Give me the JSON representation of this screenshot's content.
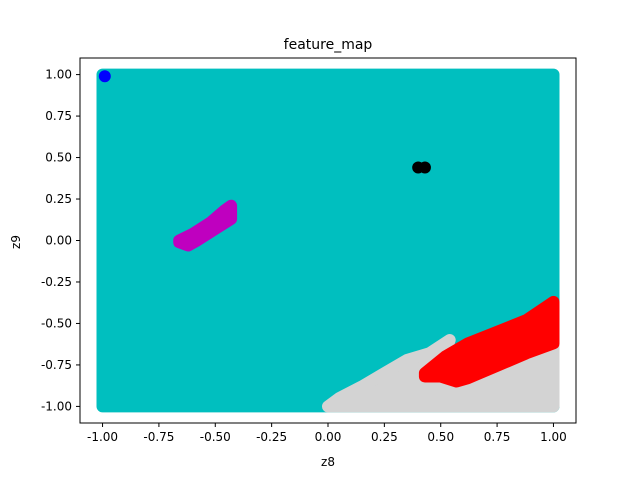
{
  "chart_data": {
    "type": "scatter",
    "title": "feature_map",
    "xlabel": "z8",
    "ylabel": "z9",
    "xlim": [
      -1.1,
      1.1
    ],
    "ylim": [
      -1.1,
      1.1
    ],
    "xticks": [
      "-1.00",
      "-0.75",
      "-0.50",
      "-0.25",
      "0.00",
      "0.25",
      "0.50",
      "0.75",
      "1.00"
    ],
    "xtick_values": [
      -1.0,
      -0.75,
      -0.5,
      -0.25,
      0.0,
      0.25,
      0.5,
      0.75,
      1.0
    ],
    "yticks": [
      "-1.00",
      "-0.75",
      "-0.50",
      "-0.25",
      "0.00",
      "0.25",
      "0.50",
      "0.75",
      "1.00"
    ],
    "ytick_values": [
      -1.0,
      -0.75,
      -0.5,
      -0.25,
      0.0,
      0.25,
      0.5,
      0.75,
      1.0
    ],
    "grid": false,
    "regions": [
      {
        "color": "#00bfbf",
        "shape": "polygon",
        "points": [
          [
            -1.0,
            1.0
          ],
          [
            1.0,
            1.0
          ],
          [
            1.0,
            -1.0
          ],
          [
            -1.0,
            -1.0
          ]
        ]
      },
      {
        "color": "#d3d3d3",
        "shape": "polygon",
        "points": [
          [
            0.0,
            -1.0
          ],
          [
            1.0,
            -1.0
          ],
          [
            1.0,
            -0.62
          ],
          [
            0.88,
            -0.68
          ],
          [
            0.76,
            -0.75
          ],
          [
            0.62,
            -0.83
          ],
          [
            0.57,
            -0.85
          ],
          [
            0.5,
            -0.82
          ],
          [
            0.5,
            -0.75
          ],
          [
            0.54,
            -0.6
          ],
          [
            0.45,
            -0.68
          ],
          [
            0.35,
            -0.72
          ],
          [
            0.25,
            -0.8
          ],
          [
            0.15,
            -0.88
          ],
          [
            0.05,
            -0.95
          ]
        ]
      },
      {
        "color": "#ff0000",
        "shape": "polygon",
        "points": [
          [
            0.43,
            -0.8
          ],
          [
            0.52,
            -0.7
          ],
          [
            0.62,
            -0.62
          ],
          [
            0.75,
            -0.55
          ],
          [
            0.88,
            -0.48
          ],
          [
            1.0,
            -0.37
          ],
          [
            1.0,
            -0.62
          ],
          [
            0.88,
            -0.68
          ],
          [
            0.76,
            -0.75
          ],
          [
            0.62,
            -0.83
          ],
          [
            0.57,
            -0.85
          ],
          [
            0.5,
            -0.82
          ],
          [
            0.43,
            -0.82
          ]
        ]
      },
      {
        "color": "#bf00bf",
        "shape": "polygon",
        "points": [
          [
            -0.66,
            0.0
          ],
          [
            -0.6,
            0.04
          ],
          [
            -0.52,
            0.11
          ],
          [
            -0.46,
            0.18
          ],
          [
            -0.43,
            0.21
          ],
          [
            -0.43,
            0.13
          ],
          [
            -0.5,
            0.07
          ],
          [
            -0.58,
            0.0
          ],
          [
            -0.62,
            -0.03
          ],
          [
            -0.66,
            -0.01
          ]
        ]
      }
    ],
    "points": [
      {
        "color": "#000000",
        "x": 0.4,
        "y": 0.44
      },
      {
        "color": "#000000",
        "x": 0.43,
        "y": 0.44
      },
      {
        "color": "#0000ff",
        "x": -0.99,
        "y": 0.99
      }
    ]
  }
}
